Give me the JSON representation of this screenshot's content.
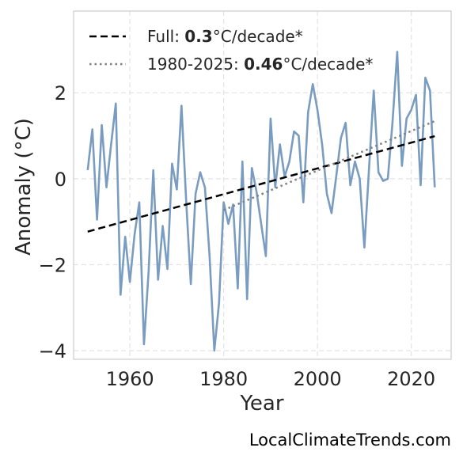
{
  "chart_data": {
    "type": "line",
    "xlabel": "Year",
    "ylabel": "Anomaly (°C)",
    "xlim": [
      1948,
      2028.5
    ],
    "ylim": [
      -4.2,
      3.9
    ],
    "x_ticks": [
      1960,
      1980,
      2000,
      2020
    ],
    "y_ticks": [
      -4,
      -2,
      0,
      2
    ],
    "y_tick_labels": [
      "−4",
      "−2",
      "0",
      "2"
    ],
    "grid": true,
    "legend_position": "top-left",
    "series": [
      {
        "color": "#7a9cc0",
        "x": [
          1951,
          1952,
          1953,
          1954,
          1955,
          1956,
          1957,
          1958,
          1959,
          1960,
          1961,
          1962,
          1963,
          1964,
          1965,
          1966,
          1967,
          1968,
          1969,
          1970,
          1971,
          1972,
          1973,
          1974,
          1975,
          1976,
          1977,
          1978,
          1979,
          1980,
          1981,
          1982,
          1983,
          1984,
          1985,
          1986,
          1987,
          1988,
          1989,
          1990,
          1991,
          1992,
          1993,
          1994,
          1995,
          1996,
          1997,
          1998,
          1999,
          2000,
          2001,
          2002,
          2003,
          2004,
          2005,
          2006,
          2007,
          2008,
          2009,
          2010,
          2011,
          2012,
          2013,
          2014,
          2015,
          2016,
          2017,
          2018,
          2019,
          2020,
          2021,
          2022,
          2023,
          2024,
          2025
        ],
        "y": [
          0.2,
          1.15,
          -0.95,
          1.25,
          -0.2,
          0.8,
          1.75,
          -2.7,
          -1.35,
          -2.4,
          -1.3,
          -0.55,
          -3.85,
          -2.15,
          0.2,
          -2.35,
          -1.1,
          -2.1,
          0.35,
          -0.25,
          1.7,
          -0.5,
          -2.45,
          -0.35,
          0.15,
          -0.2,
          -1.8,
          -4.0,
          -2.9,
          -0.55,
          -1.05,
          -0.6,
          -2.55,
          0.4,
          -2.8,
          0.25,
          -0.3,
          -1.05,
          -1.8,
          1.4,
          -0.2,
          0.8,
          0.05,
          0.4,
          1.1,
          1.0,
          -0.55,
          1.55,
          2.2,
          1.6,
          0.8,
          -0.35,
          -0.8,
          0.05,
          0.95,
          1.3,
          -0.15,
          0.4,
          0.0,
          -1.6,
          0.25,
          2.05,
          0.15,
          -0.05,
          0.0,
          1.3,
          2.95,
          0.3,
          1.4,
          1.6,
          1.95,
          -0.15,
          2.35,
          2.05,
          -0.2
        ]
      }
    ],
    "trend_lines": [
      {
        "style": "dashed",
        "color": "#000000",
        "x": [
          1951,
          2025
        ],
        "y": [
          -1.23,
          0.99
        ],
        "label_prefix": "Full: ",
        "label_value": "0.3",
        "label_suffix": "°C/decade*"
      },
      {
        "style": "dotted",
        "color": "#808080",
        "x": [
          1980,
          2025
        ],
        "y": [
          -0.73,
          1.34
        ],
        "label_prefix": "1980-2025: ",
        "label_value": "0.46",
        "label_suffix": "°C/decade*"
      }
    ]
  },
  "watermark": "LocalClimateTrends.com"
}
